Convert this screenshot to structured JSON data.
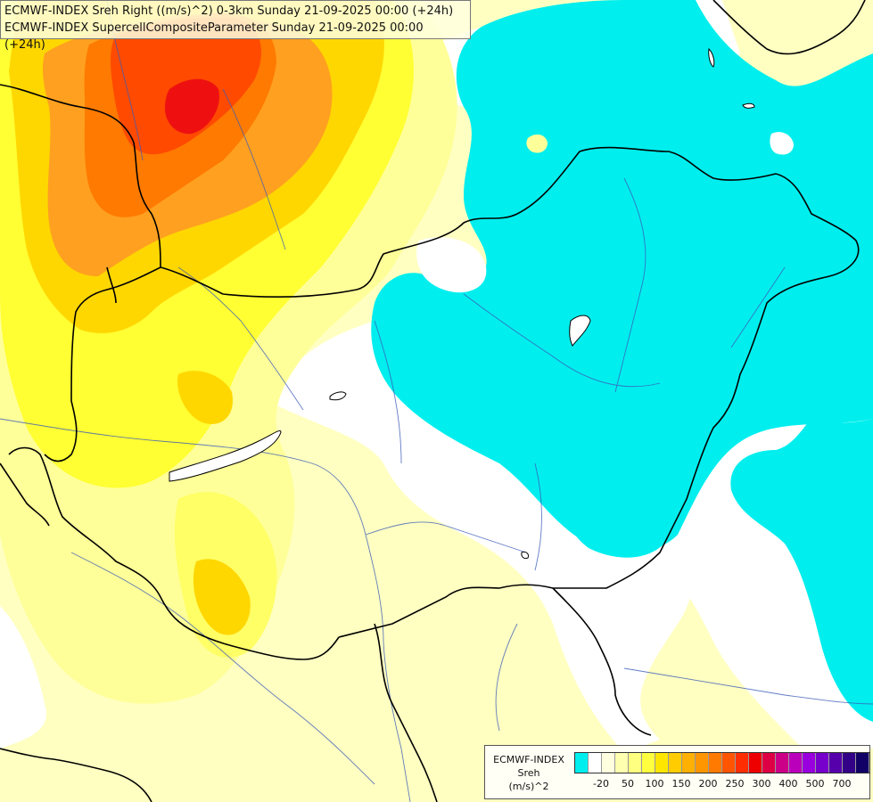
{
  "header": {
    "line1": "ECMWF-INDEX Sreh Right ((m/s)^2) 0-3km Sunday 21-09-2025 00:00 (+24h)",
    "line2": "ECMWF-INDEX SupercellCompositeParameter Sunday 21-09-2025 00:00 (+24h)"
  },
  "legend": {
    "model": "ECMWF-INDEX",
    "variable": "Sreh",
    "unit": "(m/s)^2",
    "colors": [
      "#00eeee",
      "#ffffff",
      "#ffffe0",
      "#ffffb0",
      "#ffff80",
      "#ffff40",
      "#ffe600",
      "#ffcc00",
      "#ffb000",
      "#ff9600",
      "#ff7a00",
      "#ff5500",
      "#ff2e00",
      "#ee0000",
      "#dd0044",
      "#cc0088",
      "#bb00bb",
      "#9900dd",
      "#7700cc",
      "#5500aa",
      "#330088",
      "#110066"
    ],
    "ticks": [
      {
        "label": "-20",
        "index": 1
      },
      {
        "label": "50",
        "index": 3
      },
      {
        "label": "100",
        "index": 5
      },
      {
        "label": "150",
        "index": 7
      },
      {
        "label": "200",
        "index": 9
      },
      {
        "label": "250",
        "index": 11
      },
      {
        "label": "300",
        "index": 13
      },
      {
        "label": "400",
        "index": 15
      },
      {
        "label": "500",
        "index": 17
      },
      {
        "label": "700",
        "index": 19
      }
    ]
  },
  "colors": {
    "cyan": "#00eeee",
    "pale_yellow": "#ffffc2",
    "light_yellow": "#ffff80",
    "yellow": "#ffff00",
    "gold": "#ffd700",
    "orange": "#ffa500",
    "dark_orange": "#ff7f00",
    "red_orange": "#ff4500",
    "red": "#ff1a1a",
    "border": "#000000",
    "river": "#3a5bb8"
  }
}
